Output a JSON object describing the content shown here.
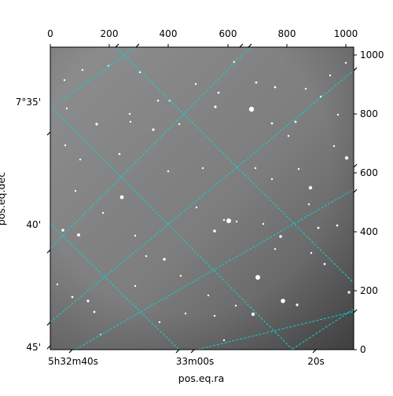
{
  "chart_data": {
    "type": "image",
    "colormap": "grayscale",
    "grid_color": "#00d8d8",
    "xlabel": "pos.eq.ra",
    "ylabel": "pos.eq.dec",
    "pixel_xlim": [
      0,
      1024
    ],
    "pixel_ylim": [
      0,
      1024
    ],
    "top_ticks": [
      "0",
      "200",
      "400",
      "600",
      "800",
      "1000"
    ],
    "right_ticks": [
      "0",
      "200",
      "400",
      "600",
      "800",
      "1000"
    ],
    "ra_ticks": [
      "5h32m40s",
      "33m00s",
      "20s"
    ],
    "dec_ticks": [
      "7°35'",
      "40'",
      "45'"
    ]
  }
}
